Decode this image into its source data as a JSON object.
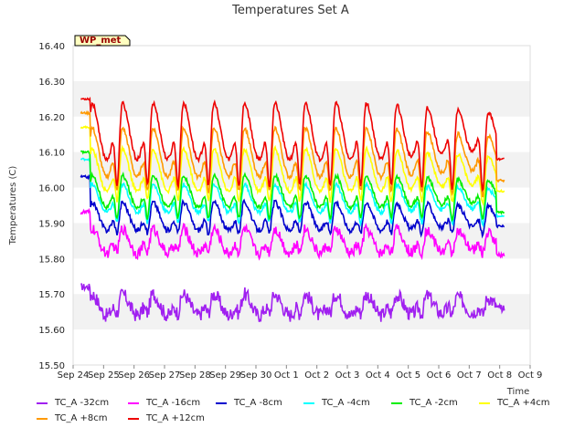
{
  "chart_data": {
    "type": "line",
    "title": "Temperatures Set A",
    "xlabel": "Time",
    "ylabel": "Temperatures (C)",
    "ylim": [
      15.5,
      16.4
    ],
    "yticks": [
      "15.50",
      "15.60",
      "15.70",
      "15.80",
      "15.90",
      "16.00",
      "16.10",
      "16.20",
      "16.30",
      "16.40"
    ],
    "xlim": [
      0,
      15
    ],
    "xticks": [
      "Sep 24",
      "Sep 25",
      "Sep 26",
      "Sep 27",
      "Sep 28",
      "Sep 29",
      "Sep 30",
      "Oct 1",
      "Oct 2",
      "Oct 3",
      "Oct 4",
      "Oct 5",
      "Oct 6",
      "Oct 7",
      "Oct 8",
      "Oct 9"
    ],
    "x_units": "days since Sep 24",
    "annotation": "WP_met",
    "bands": [
      [
        15.6,
        15.7
      ],
      [
        15.8,
        15.9
      ],
      [
        16.0,
        16.1
      ],
      [
        16.2,
        16.3
      ]
    ],
    "series": [
      {
        "name": "TC_A -32cm",
        "color": "#a020f0",
        "base": 15.67,
        "start": 15.72,
        "amp": 0.03,
        "noise": 0.04,
        "dip": 0.04,
        "end": 15.66
      },
      {
        "name": "TC_A -16cm",
        "color": "#ff00ff",
        "base": 15.85,
        "start": 15.93,
        "amp": 0.035,
        "noise": 0.03,
        "dip": 0.05,
        "end": 15.81
      },
      {
        "name": "TC_A -8cm",
        "color": "#0000cd",
        "base": 15.92,
        "start": 16.03,
        "amp": 0.04,
        "noise": 0.015,
        "dip": 0.07,
        "end": 15.89
      },
      {
        "name": "TC_A -4cm",
        "color": "#00ffff",
        "base": 15.97,
        "start": 16.08,
        "amp": 0.04,
        "noise": 0.012,
        "dip": 0.09,
        "end": 15.92
      },
      {
        "name": "TC_A -2cm",
        "color": "#00ee00",
        "base": 15.99,
        "start": 16.1,
        "amp": 0.045,
        "noise": 0.012,
        "dip": 0.1,
        "end": 15.93
      },
      {
        "name": "TC_A +4cm",
        "color": "#ffff00",
        "base": 16.05,
        "start": 16.17,
        "amp": 0.06,
        "noise": 0.012,
        "dip": 0.12,
        "end": 15.99
      },
      {
        "name": "TC_A +8cm",
        "color": "#ff9900",
        "base": 16.1,
        "start": 16.21,
        "amp": 0.07,
        "noise": 0.012,
        "dip": 0.15,
        "end": 16.02
      },
      {
        "name": "TC_A +12cm",
        "color": "#ee0000",
        "base": 16.16,
        "start": 16.25,
        "amp": 0.08,
        "noise": 0.012,
        "dip": 0.2,
        "end": 16.08
      }
    ]
  }
}
